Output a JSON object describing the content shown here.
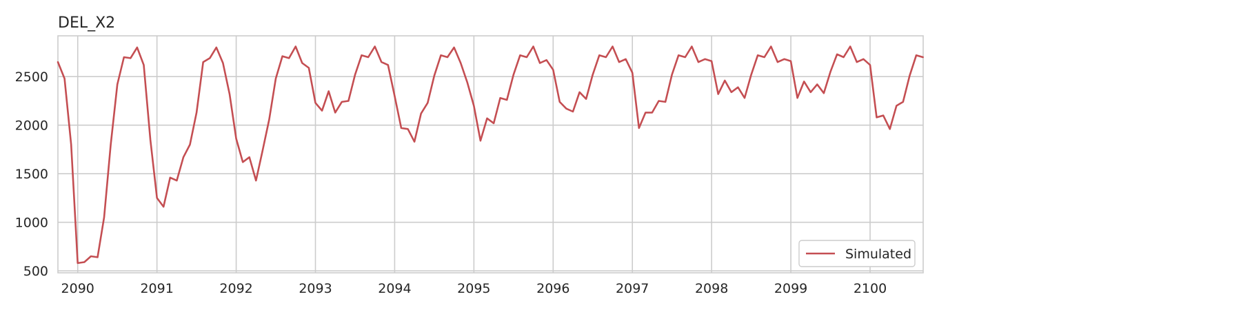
{
  "chart_data": {
    "type": "line",
    "title": "DEL_X2",
    "xlabel": "",
    "ylabel": "",
    "x_ticks": [
      "2090",
      "2091",
      "2092",
      "2093",
      "2094",
      "2095",
      "2096",
      "2097",
      "2098",
      "2099",
      "2100"
    ],
    "y_ticks": [
      "500",
      "1000",
      "1500",
      "2000",
      "2500"
    ],
    "xlim": [
      2089.75,
      2100.67
    ],
    "ylim": [
      480,
      2920
    ],
    "grid": true,
    "legend": {
      "position": "lower-right",
      "entries": [
        "Simulated"
      ]
    },
    "series": [
      {
        "name": "Simulated",
        "color": "#c44e52",
        "start_year": 2089.75,
        "step": 0.08333,
        "values": [
          2650,
          2480,
          1800,
          580,
          590,
          650,
          640,
          1050,
          1800,
          2420,
          2700,
          2690,
          2800,
          2620,
          1850,
          1250,
          1160,
          1460,
          1430,
          1670,
          1800,
          2130,
          2650,
          2690,
          2800,
          2640,
          2320,
          1860,
          1620,
          1670,
          1430,
          1740,
          2060,
          2480,
          2710,
          2690,
          2810,
          2640,
          2590,
          2230,
          2150,
          2350,
          2130,
          2240,
          2250,
          2520,
          2720,
          2700,
          2810,
          2650,
          2620,
          2300,
          1970,
          1960,
          1830,
          2120,
          2230,
          2510,
          2720,
          2700,
          2800,
          2640,
          2440,
          2200,
          1840,
          2070,
          2020,
          2280,
          2260,
          2520,
          2720,
          2700,
          2810,
          2640,
          2670,
          2570,
          2240,
          2170,
          2140,
          2340,
          2270,
          2520,
          2720,
          2700,
          2810,
          2650,
          2680,
          2540,
          1970,
          2130,
          2130,
          2250,
          2240,
          2520,
          2720,
          2700,
          2810,
          2650,
          2680,
          2660,
          2320,
          2460,
          2340,
          2390,
          2280,
          2520,
          2720,
          2700,
          2810,
          2650,
          2680,
          2660,
          2280,
          2450,
          2340,
          2420,
          2330,
          2550,
          2730,
          2700,
          2810,
          2650,
          2680,
          2620,
          2080,
          2100,
          1960,
          2200,
          2240,
          2510,
          2720,
          2700
        ]
      }
    ]
  }
}
